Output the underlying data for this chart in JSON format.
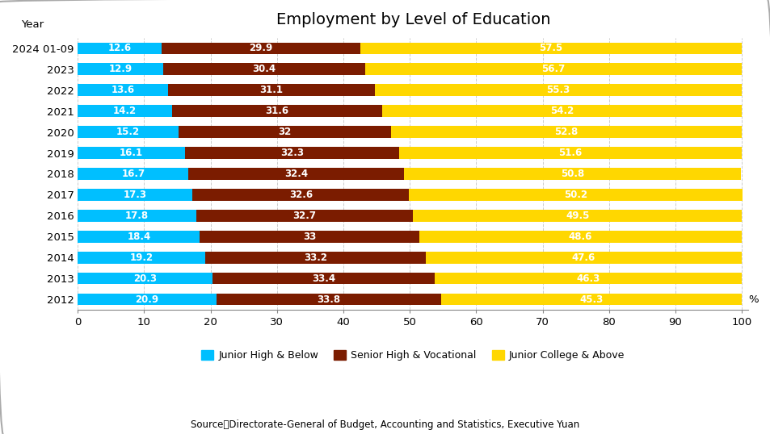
{
  "title": "Employment by Level of Education",
  "source": "Source：Directorate-General of Budget, Accounting and Statistics, Executive Yuan",
  "ylabel": "Year",
  "xlabel_unit": "%",
  "years": [
    "2024 01-09",
    "2023",
    "2022",
    "2021",
    "2020",
    "2019",
    "2018",
    "2017",
    "2016",
    "2015",
    "2014",
    "2013",
    "2012"
  ],
  "junior_high": [
    12.6,
    12.9,
    13.6,
    14.2,
    15.2,
    16.1,
    16.7,
    17.3,
    17.8,
    18.4,
    19.2,
    20.3,
    20.9
  ],
  "senior_high": [
    29.9,
    30.4,
    31.1,
    31.6,
    32.0,
    32.3,
    32.4,
    32.6,
    32.7,
    33.0,
    33.2,
    33.4,
    33.8
  ],
  "junior_college": [
    57.5,
    56.7,
    55.3,
    54.2,
    52.8,
    51.6,
    50.8,
    50.2,
    49.5,
    48.6,
    47.6,
    46.3,
    45.3
  ],
  "senior_high_labels": [
    "29.9",
    "30.4",
    "31.1",
    "31.6",
    "32",
    "32.3",
    "32.4",
    "32.6",
    "32.7",
    "33",
    "33.2",
    "33.4",
    "33.8"
  ],
  "color_junior_high": "#00BFFF",
  "color_senior_high": "#7B1C00",
  "color_junior_college": "#FFD700",
  "legend_labels": [
    "Junior High & Below",
    "Senior High & Vocational",
    "Junior College & Above"
  ],
  "xlim": [
    0,
    100
  ],
  "xticks": [
    0,
    10,
    20,
    30,
    40,
    50,
    60,
    70,
    80,
    90,
    100
  ],
  "bar_height": 0.55,
  "title_fontsize": 14,
  "axis_fontsize": 9.5,
  "label_fontsize": 8.5,
  "legend_fontsize": 9,
  "source_fontsize": 8.5,
  "background_color": "#FFFFFF",
  "border_color": "#AAAAAA",
  "grid_color": "#CCCCCC"
}
